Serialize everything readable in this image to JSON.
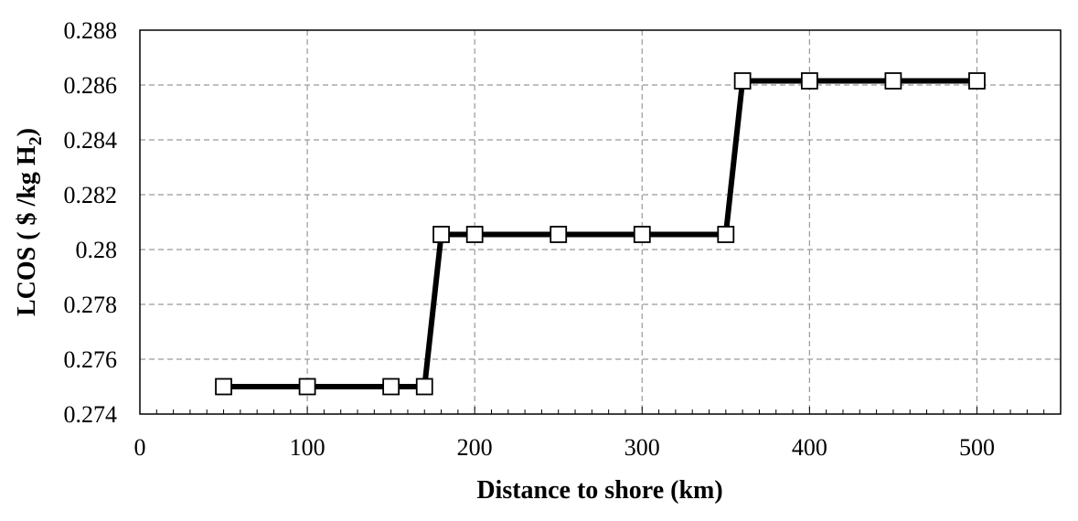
{
  "chart_data": {
    "type": "line",
    "title": "",
    "xlabel": "Distance to shore (km)",
    "ylabel": {
      "main": "LCOS ( $ /kg H",
      "subscript": "2",
      "close": ")"
    },
    "xlim": [
      0,
      550
    ],
    "ylim": [
      0.274,
      0.288
    ],
    "x_ticks": [
      0,
      100,
      200,
      300,
      400,
      500
    ],
    "y_ticks": [
      0.274,
      0.276,
      0.278,
      0.28,
      0.282,
      0.284,
      0.286,
      0.288
    ],
    "x_tick_labels": [
      "0",
      "100",
      "200",
      "300",
      "400",
      "500"
    ],
    "y_tick_labels": [
      "0.274",
      "0.276",
      "0.278",
      "0.28",
      "0.282",
      "0.284",
      "0.286",
      "0.288"
    ],
    "x_minor_step": 10,
    "grid": true,
    "legend": "none",
    "series": [
      {
        "x": [
          50,
          100,
          150,
          170,
          180,
          200,
          250,
          300,
          350,
          360,
          400,
          450,
          500
        ],
        "y": [
          0.275,
          0.275,
          0.275,
          0.275,
          0.28055,
          0.28055,
          0.28055,
          0.28055,
          0.28055,
          0.28615,
          0.28615,
          0.28615,
          0.28615
        ],
        "line_color": "#000000",
        "marker": "square",
        "marker_fill": "#ffffff"
      }
    ]
  }
}
